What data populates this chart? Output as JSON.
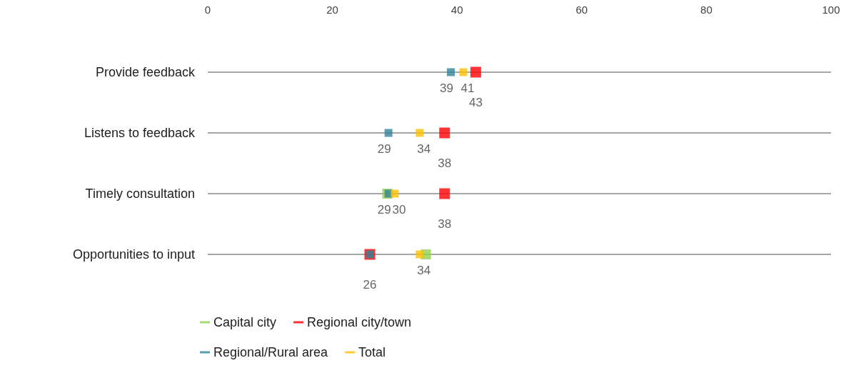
{
  "chart_data": {
    "type": "scatter",
    "categories": [
      "Provide feedback",
      "Listens to feedback",
      "Timely consultation",
      "Opportunities to input"
    ],
    "series": [
      {
        "name": "Capital city",
        "color": "#92d050",
        "values": [
          null,
          null,
          28.8,
          35
        ],
        "value_labels": [
          null,
          null,
          null,
          null
        ]
      },
      {
        "name": "Regional city/town",
        "color": "#ff0000",
        "values": [
          43,
          38,
          38,
          26
        ],
        "value_labels": [
          "43",
          "38",
          "38",
          "26"
        ]
      },
      {
        "name": "Regional/Rural area",
        "color": "#31849b",
        "values": [
          39,
          29,
          29,
          26
        ],
        "value_labels": [
          "39",
          "29",
          "29",
          null
        ]
      },
      {
        "name": "Total",
        "color": "#ffc000",
        "values": [
          41,
          34,
          30,
          34
        ],
        "value_labels": [
          "41",
          "34",
          "30",
          "34"
        ]
      }
    ],
    "xlim": [
      0,
      100
    ],
    "xticks": [
      0,
      20,
      40,
      60,
      80,
      100
    ],
    "orientation": "horizontal",
    "marker": "square",
    "grid": "y",
    "legend": "bottom"
  }
}
